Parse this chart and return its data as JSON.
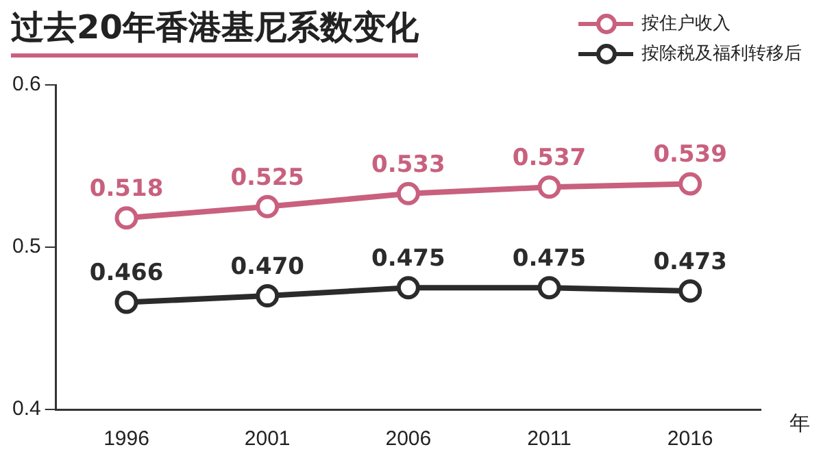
{
  "chart_data": {
    "type": "line",
    "title": "过去20年香港基尼系数变化",
    "xlabel": "年",
    "categories": [
      "1996",
      "2001",
      "2006",
      "2011",
      "2016"
    ],
    "series": [
      {
        "name": "按住户收入",
        "color": "#c8607e",
        "values": [
          0.518,
          0.525,
          0.533,
          0.537,
          0.539
        ],
        "value_labels": [
          "0.518",
          "0.525",
          "0.533",
          "0.537",
          "0.539"
        ]
      },
      {
        "name": "按除税及福利转移后",
        "color": "#2b2b2b",
        "values": [
          0.466,
          0.47,
          0.475,
          0.475,
          0.473
        ],
        "value_labels": [
          "0.466",
          "0.470",
          "0.475",
          "0.475",
          "0.473"
        ]
      }
    ],
    "ylim": [
      0.4,
      0.6
    ],
    "yticks": [
      0.4,
      0.5,
      0.6
    ],
    "grid": false,
    "legend": "top right",
    "marker": "circle",
    "line_style": "solid"
  }
}
